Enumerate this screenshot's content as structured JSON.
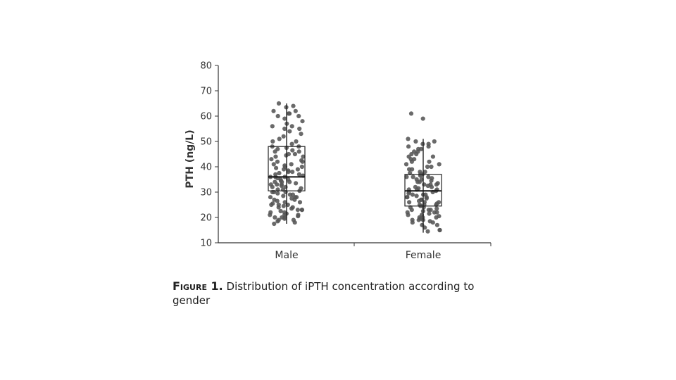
{
  "chart_data": {
    "type": "box-strip",
    "ylabel": "PTH (ng/L)",
    "xlabel": "",
    "ylim": [
      10,
      80
    ],
    "yticks": [
      10,
      20,
      30,
      40,
      50,
      60,
      70,
      80
    ],
    "grid": false,
    "categories": [
      "Male",
      "Female"
    ],
    "boxes": [
      {
        "category": "Male",
        "q1": 30.5,
        "median": 36,
        "q3": 48,
        "whisker_low": 17.5,
        "whisker_high": 65
      },
      {
        "category": "Female",
        "q1": 24.5,
        "median": 30.5,
        "q3": 37,
        "whisker_low": 14,
        "whisker_high": 51
      }
    ],
    "points": [
      [
        63.5,
        61,
        62,
        60,
        59,
        57,
        56,
        55,
        54,
        52,
        51,
        50,
        49,
        48,
        47.5,
        47,
        46.5,
        46,
        45,
        44.5,
        44,
        43,
        42.5,
        42,
        41,
        40.5,
        40,
        39.5,
        39,
        38.5,
        38,
        37.5,
        37,
        36.5,
        36,
        35.5,
        35,
        34.5,
        34,
        33.5,
        33,
        32.5,
        32,
        31.5,
        31,
        30.5,
        30,
        29.5,
        29,
        28.5,
        28,
        27.5,
        27,
        26.5,
        26,
        25.5,
        25,
        24.5,
        24,
        23.5,
        23,
        22.5,
        22,
        21.5,
        21,
        20.5,
        20,
        19.5,
        19,
        18.5,
        18,
        17.5,
        65,
        62,
        60,
        58,
        53,
        48,
        45,
        41,
        38,
        36,
        35,
        34,
        33,
        31,
        29,
        27,
        25,
        23,
        21,
        20,
        61,
        55,
        50,
        44,
        40,
        37,
        34,
        32,
        30,
        28,
        26,
        24,
        22,
        20,
        19,
        64,
        56,
        46,
        42,
        39,
        36,
        33,
        30,
        28,
        25,
        23,
        21
      ],
      [
        61,
        59,
        51,
        50,
        49,
        48,
        47,
        46,
        45,
        44,
        43,
        42,
        41,
        40,
        39,
        38,
        37.5,
        37,
        36.5,
        36,
        35.5,
        35,
        34.5,
        34,
        33.5,
        33,
        32.5,
        32,
        31.5,
        31,
        30.5,
        30,
        29.5,
        29,
        28.5,
        28,
        27.5,
        27,
        26.5,
        26,
        25.5,
        25,
        24.5,
        24,
        23.5,
        23,
        22.5,
        22,
        21.5,
        21,
        20.5,
        20,
        19.5,
        19,
        18.5,
        18,
        17,
        16,
        15,
        14.5,
        50,
        47,
        44,
        41,
        38,
        36,
        34,
        32,
        30,
        29,
        27,
        25,
        23,
        21,
        19,
        17,
        15,
        49,
        45,
        42,
        39,
        36,
        33,
        31,
        28,
        26,
        24,
        22,
        20,
        18,
        48,
        43,
        40,
        35,
        31,
        28,
        25,
        22,
        19,
        46,
        37,
        33,
        29,
        26,
        23,
        20
      ]
    ],
    "point_color": "#555555"
  },
  "caption": {
    "label": "Figure 1.",
    "text": " Distribution of iPTH concentration according to gender"
  }
}
